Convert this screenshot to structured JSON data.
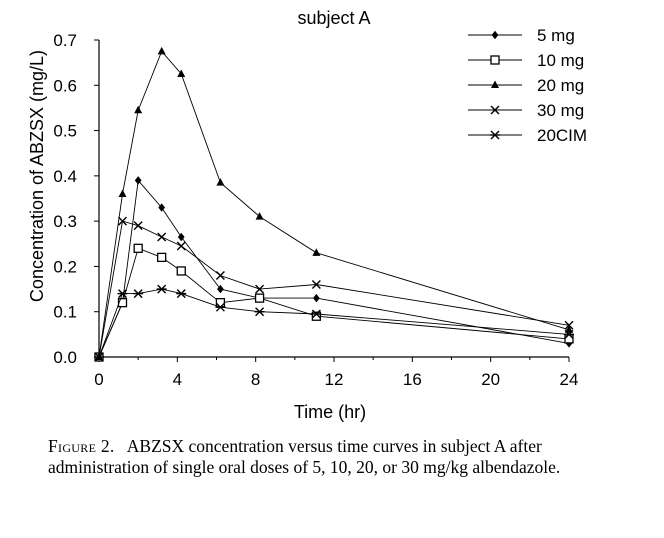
{
  "chart_data": {
    "type": "line",
    "title": "subject A",
    "xlabel": "Time (hr)",
    "ylabel": "Concentration of ABZSX (mg/L)",
    "xlim": [
      0,
      24
    ],
    "ylim": [
      0.0,
      0.7
    ],
    "x_ticks": [
      0,
      4,
      8,
      12,
      16,
      20,
      24
    ],
    "y_ticks": [
      0.0,
      0.1,
      0.2,
      0.3,
      0.4,
      0.5,
      0.6,
      0.7
    ],
    "grid": false,
    "legend_position": "top-right",
    "series": [
      {
        "name": "5 mg",
        "marker": "diamond",
        "points": [
          [
            0,
            0.0
          ],
          [
            1.2,
            0.12
          ],
          [
            2,
            0.39
          ],
          [
            3.2,
            0.33
          ],
          [
            4.2,
            0.265
          ],
          [
            6.2,
            0.15
          ],
          [
            8.2,
            0.13
          ],
          [
            11.1,
            0.13
          ],
          [
            24,
            0.03
          ]
        ]
      },
      {
        "name": "10 mg",
        "marker": "open-square",
        "points": [
          [
            0,
            0.0
          ],
          [
            1.2,
            0.12
          ],
          [
            2,
            0.24
          ],
          [
            3.2,
            0.22
          ],
          [
            4.2,
            0.19
          ],
          [
            6.2,
            0.12
          ],
          [
            8.2,
            0.13
          ],
          [
            11.1,
            0.09
          ],
          [
            24,
            0.04
          ]
        ]
      },
      {
        "name": "20 mg",
        "marker": "triangle",
        "points": [
          [
            0,
            0.0
          ],
          [
            1.2,
            0.36
          ],
          [
            2,
            0.545
          ],
          [
            3.2,
            0.675
          ],
          [
            4.2,
            0.625
          ],
          [
            6.2,
            0.385
          ],
          [
            8.2,
            0.31
          ],
          [
            11.1,
            0.23
          ],
          [
            24,
            0.06
          ]
        ]
      },
      {
        "name": "30 mg",
        "marker": "x",
        "points": [
          [
            0,
            0.0
          ],
          [
            1.2,
            0.3
          ],
          [
            2,
            0.29
          ],
          [
            3.2,
            0.265
          ],
          [
            4.2,
            0.245
          ],
          [
            6.2,
            0.18
          ],
          [
            8.2,
            0.15
          ],
          [
            11.1,
            0.16
          ],
          [
            24,
            0.07
          ]
        ]
      },
      {
        "name": "20CIM",
        "marker": "star",
        "points": [
          [
            0,
            0.0
          ],
          [
            1.2,
            0.14
          ],
          [
            2,
            0.14
          ],
          [
            3.2,
            0.15
          ],
          [
            4.2,
            0.14
          ],
          [
            6.2,
            0.11
          ],
          [
            8.2,
            0.1
          ],
          [
            11.1,
            0.095
          ],
          [
            24,
            0.05
          ]
        ]
      }
    ]
  },
  "caption": {
    "label": "Figure 2.",
    "text": "ABZSX concentration versus time curves in subject A after administration of single oral doses of 5, 10, 20, or 30 mg/kg albendazole."
  }
}
